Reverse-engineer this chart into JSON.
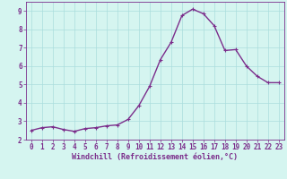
{
  "x": [
    0,
    1,
    2,
    3,
    4,
    5,
    6,
    7,
    8,
    9,
    10,
    11,
    12,
    13,
    14,
    15,
    16,
    17,
    18,
    19,
    20,
    21,
    22,
    23
  ],
  "y": [
    2.5,
    2.65,
    2.7,
    2.55,
    2.45,
    2.6,
    2.65,
    2.75,
    2.8,
    3.1,
    3.85,
    4.9,
    6.35,
    7.3,
    8.75,
    9.1,
    8.85,
    8.2,
    6.85,
    6.9,
    6.0,
    5.45,
    5.1,
    5.1
  ],
  "line_color": "#7b2d8b",
  "marker": "+",
  "marker_size": 3,
  "linewidth": 1.0,
  "background_color": "#d5f5f0",
  "grid_color": "#aadddd",
  "xlabel": "Windchill (Refroidissement éolien,°C)",
  "xlabel_color": "#7b2d8b",
  "xlabel_fontsize": 6.0,
  "tick_color": "#7b2d8b",
  "tick_fontsize": 5.5,
  "ylim": [
    2,
    9.5
  ],
  "xlim": [
    -0.5,
    23.5
  ],
  "yticks": [
    2,
    3,
    4,
    5,
    6,
    7,
    8,
    9
  ],
  "xticks": [
    0,
    1,
    2,
    3,
    4,
    5,
    6,
    7,
    8,
    9,
    10,
    11,
    12,
    13,
    14,
    15,
    16,
    17,
    18,
    19,
    20,
    21,
    22,
    23
  ],
  "grid_alpha": 1.0,
  "spine_color": "#7b2d8b"
}
